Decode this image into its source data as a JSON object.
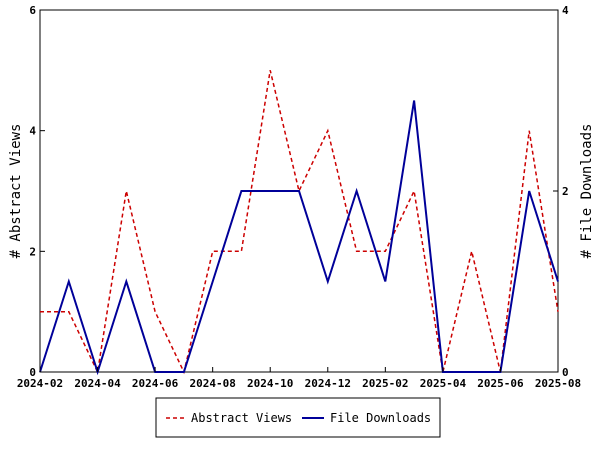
{
  "chart_data": {
    "type": "line",
    "x": [
      "2024-02",
      "2024-03",
      "2024-04",
      "2024-05",
      "2024-06",
      "2024-07",
      "2024-08",
      "2024-09",
      "2024-10",
      "2024-11",
      "2024-12",
      "2025-01",
      "2025-02",
      "2025-03",
      "2025-04",
      "2025-05",
      "2025-06",
      "2025-07",
      "2025-08"
    ],
    "x_tick_labels": [
      "2024-02",
      "2024-04",
      "2024-06",
      "2024-08",
      "2024-10",
      "2024-12",
      "2025-02",
      "2025-04",
      "2025-06",
      "2025-08"
    ],
    "series": [
      {
        "name": "Abstract Views",
        "axis": "left",
        "color": "#cc0000",
        "dash": "dashed",
        "values": [
          1,
          1,
          0,
          3,
          1,
          0,
          2,
          2,
          5,
          3,
          4,
          2,
          2,
          3,
          0,
          2,
          0,
          4,
          1
        ]
      },
      {
        "name": "File Downloads",
        "axis": "right",
        "color": "#000099",
        "dash": "solid",
        "values": [
          0,
          1,
          0,
          1,
          0,
          0,
          1,
          2,
          2,
          2,
          1,
          2,
          1,
          3,
          0,
          0,
          0,
          2,
          1
        ]
      }
    ],
    "ylabel": "# Abstract Views",
    "ylabel_right": "# File Downloads",
    "ylim": [
      0,
      6
    ],
    "yticks": [
      0,
      2,
      4,
      6
    ],
    "ylim_right": [
      0,
      4
    ],
    "yticks_right": [
      0,
      2,
      4
    ],
    "grid": false,
    "legend_position": "bottom"
  }
}
